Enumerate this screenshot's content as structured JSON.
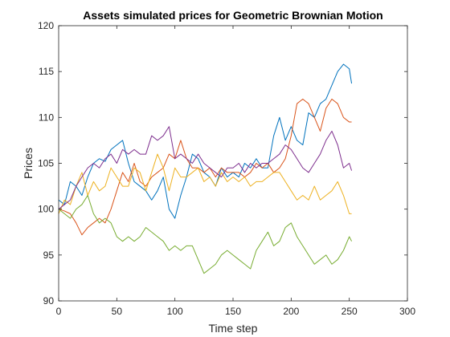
{
  "chart_data": {
    "type": "line",
    "title": "Assets simulated prices for Geometric Brownian Motion",
    "xlabel": "Time step",
    "ylabel": "Prices",
    "xlim": [
      0,
      300
    ],
    "ylim": [
      90,
      120
    ],
    "xticks": [
      0,
      50,
      100,
      150,
      200,
      250,
      300
    ],
    "yticks": [
      90,
      95,
      100,
      105,
      110,
      115,
      120
    ],
    "grid": false,
    "legend": "none",
    "series": [
      {
        "color": "#0072BD",
        "x": [
          0,
          5,
          10,
          15,
          20,
          25,
          30,
          35,
          40,
          45,
          50,
          55,
          60,
          65,
          70,
          75,
          80,
          85,
          90,
          95,
          100,
          105,
          110,
          115,
          120,
          125,
          130,
          135,
          140,
          145,
          150,
          155,
          160,
          165,
          170,
          175,
          180,
          185,
          190,
          195,
          200,
          205,
          210,
          215,
          220,
          225,
          230,
          235,
          240,
          245,
          250,
          252
        ],
        "values": [
          101,
          100.5,
          103,
          102.5,
          101.5,
          103.5,
          105,
          105.5,
          105.2,
          106.5,
          107,
          107.5,
          105,
          103,
          102.5,
          102,
          101,
          102,
          103.5,
          100,
          99,
          101.5,
          103.5,
          106,
          105.5,
          104,
          103.5,
          102.5,
          104.5,
          103.5,
          104,
          103.5,
          105,
          104.5,
          105.5,
          104.5,
          104.5,
          108,
          110,
          107.5,
          109,
          107.5,
          107,
          110.5,
          110,
          111.5,
          112,
          113.5,
          115,
          115.8,
          115.3,
          113.7
        ]
      },
      {
        "color": "#D95319",
        "x": [
          0,
          5,
          10,
          15,
          20,
          25,
          30,
          35,
          40,
          45,
          50,
          55,
          60,
          65,
          70,
          75,
          80,
          85,
          90,
          95,
          100,
          105,
          110,
          115,
          120,
          125,
          130,
          135,
          140,
          145,
          150,
          155,
          160,
          165,
          170,
          175,
          180,
          185,
          190,
          195,
          200,
          205,
          210,
          215,
          220,
          225,
          230,
          235,
          240,
          245,
          250,
          252
        ],
        "values": [
          100,
          99.8,
          99.5,
          98.5,
          97.2,
          98,
          98.5,
          99,
          98.5,
          100,
          102,
          104,
          103,
          105,
          103,
          102.5,
          103.5,
          104,
          104.5,
          106,
          105.5,
          107.5,
          105.5,
          104.5,
          104.5,
          104,
          104.5,
          103.5,
          104.5,
          104,
          104,
          104,
          103.5,
          104,
          105,
          104.5,
          105,
          104,
          104.5,
          105.5,
          108,
          111.5,
          112,
          111.5,
          110,
          108.5,
          111,
          112,
          111.5,
          110,
          109.5,
          109.5
        ]
      },
      {
        "color": "#EDB120",
        "x": [
          0,
          5,
          10,
          15,
          20,
          25,
          30,
          35,
          40,
          45,
          50,
          55,
          60,
          65,
          70,
          75,
          80,
          85,
          90,
          95,
          100,
          105,
          110,
          115,
          120,
          125,
          130,
          135,
          140,
          145,
          150,
          155,
          160,
          165,
          170,
          175,
          180,
          185,
          190,
          195,
          200,
          205,
          210,
          215,
          220,
          225,
          230,
          235,
          240,
          245,
          250,
          252
        ],
        "values": [
          99.5,
          101,
          100.5,
          102.5,
          104,
          101.5,
          103,
          102,
          102.5,
          104.5,
          103.5,
          102.5,
          102.5,
          104.5,
          104,
          102,
          104,
          106,
          104.5,
          102,
          104.5,
          103.5,
          103.5,
          104,
          104.5,
          103,
          103.5,
          102.5,
          104,
          103,
          103.5,
          103,
          103.5,
          102.5,
          103,
          103,
          103.5,
          104,
          104,
          103,
          102,
          101,
          101.5,
          101,
          102.5,
          101,
          101.5,
          102,
          103,
          101.5,
          99.5,
          99.5
        ]
      },
      {
        "color": "#7E2F8E",
        "x": [
          0,
          5,
          10,
          15,
          20,
          25,
          30,
          35,
          40,
          45,
          50,
          55,
          60,
          65,
          70,
          75,
          80,
          85,
          90,
          95,
          100,
          105,
          110,
          115,
          120,
          125,
          130,
          135,
          140,
          145,
          150,
          155,
          160,
          165,
          170,
          175,
          180,
          185,
          190,
          195,
          200,
          205,
          210,
          215,
          220,
          225,
          230,
          235,
          240,
          245,
          250,
          252
        ],
        "values": [
          100,
          100.5,
          101,
          102.5,
          103.5,
          104.5,
          105,
          104.5,
          105.5,
          106,
          105,
          106.5,
          106,
          106.5,
          106,
          106,
          108,
          107.5,
          108,
          109,
          105.5,
          106,
          105.5,
          105,
          106,
          105,
          104.5,
          104,
          103.5,
          104.5,
          104.5,
          105,
          104,
          105,
          104.5,
          105,
          105,
          105.5,
          106,
          107,
          106.5,
          105.5,
          104.5,
          104,
          105,
          106,
          107.5,
          108.5,
          107,
          104.5,
          105,
          104.2
        ]
      },
      {
        "color": "#77AC30",
        "x": [
          0,
          5,
          10,
          15,
          20,
          25,
          30,
          35,
          40,
          45,
          50,
          55,
          60,
          65,
          70,
          75,
          80,
          85,
          90,
          95,
          100,
          105,
          110,
          115,
          120,
          125,
          130,
          135,
          140,
          145,
          150,
          155,
          160,
          165,
          170,
          175,
          180,
          185,
          190,
          195,
          200,
          205,
          210,
          215,
          220,
          225,
          230,
          235,
          240,
          245,
          250,
          252
        ],
        "values": [
          100,
          99.5,
          99,
          100,
          100.5,
          101.5,
          99.5,
          98.5,
          99,
          98.5,
          97,
          96.5,
          97,
          96.5,
          97,
          98,
          97.5,
          97,
          96.5,
          95.5,
          96,
          95.5,
          96,
          96,
          94.5,
          93,
          93.5,
          94,
          95,
          95.5,
          95,
          94.5,
          94,
          93.5,
          95.5,
          96.5,
          97.5,
          96,
          96.5,
          98,
          98.5,
          97,
          96,
          95,
          94,
          94.5,
          95,
          94,
          94.5,
          95.5,
          97,
          96.5
        ]
      }
    ]
  }
}
